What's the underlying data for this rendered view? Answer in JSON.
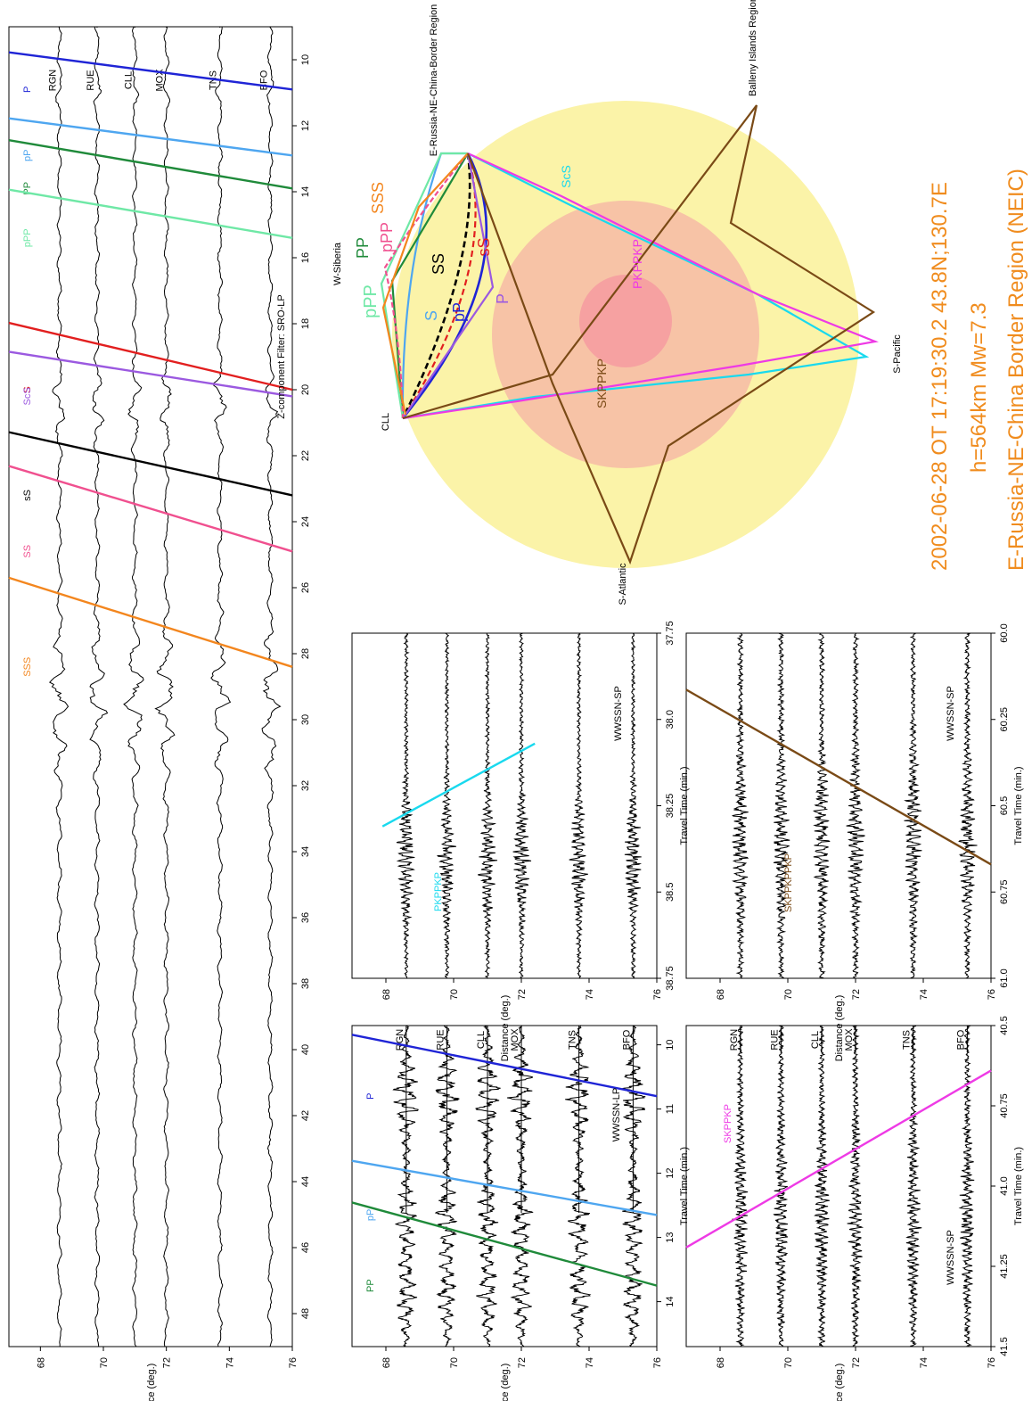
{
  "colors": {
    "P": "#1f24d6",
    "pP": "#4ea6f0",
    "PP": "#1f8a3a",
    "pPP": "#6fe8a6",
    "S": "#e21f1f",
    "ScS": "#9b59e0",
    "sS": "#000000",
    "SS": "#f0508f",
    "SSS": "#f3861e",
    "PKPPKP": "#19d9ee",
    "SKPPKP": "#ee3ae5",
    "SKPPKPPKP": "#7a4a16",
    "core_outer": "#f7c3a6",
    "core_inner": "#f6a1a1",
    "mantle": "#fbf3a8",
    "title": "#f08c1e"
  },
  "stations": [
    "BFO",
    "TNS",
    "MOX",
    "CLL",
    "RUE",
    "RGN"
  ],
  "station_distances": [
    75.3,
    73.7,
    72.0,
    71.0,
    69.8,
    68.6
  ],
  "chart_data": [
    {
      "type": "line",
      "name": "main",
      "filter_label": "Z-component  Filter: SRO-LP",
      "xlabel": "Distance (deg.)",
      "xlim": [
        67,
        76
      ],
      "xticks": [
        68,
        70,
        72,
        74,
        76
      ],
      "ylim": [
        9,
        49
      ],
      "yticks": [
        10,
        12,
        14,
        16,
        18,
        20,
        22,
        24,
        26,
        28,
        30,
        32,
        34,
        36,
        38,
        40,
        42,
        44,
        46,
        48
      ],
      "phases": [
        {
          "name": "P",
          "t68": 9.9,
          "t76": 10.9
        },
        {
          "name": "pP",
          "t68": 11.9,
          "t76": 12.9
        },
        {
          "name": "PP",
          "t68": 12.6,
          "t76": 13.9
        },
        {
          "name": "pPP",
          "t68": 14.1,
          "t76": 15.4
        },
        {
          "name": "S",
          "t68": 18.2,
          "t76": 20.0
        },
        {
          "name": "ScS",
          "t68": 19.0,
          "t76": 20.2
        },
        {
          "name": "sS",
          "t68": 21.5,
          "t76": 23.2
        },
        {
          "name": "SS",
          "t68": 22.6,
          "t76": 24.9
        },
        {
          "name": "SSS",
          "t68": 26.0,
          "t76": 28.4
        }
      ]
    },
    {
      "type": "line",
      "name": "wwssn-lp",
      "filter_label": "WWSSN-LP",
      "xlabel": "Distance (deg.)",
      "ylabel": "Travel Time (min.)",
      "xlim": [
        67,
        76
      ],
      "xticks": [
        68,
        70,
        72,
        74,
        76
      ],
      "ylim": [
        9.7,
        14.7
      ],
      "yticks": [
        10,
        11,
        12,
        13,
        14
      ],
      "phases": [
        {
          "name": "P",
          "t68": 9.95,
          "t76": 10.8
        },
        {
          "name": "pP",
          "t68": 11.9,
          "t76": 12.65
        },
        {
          "name": "PP",
          "t68": 12.6,
          "t76": 13.75
        }
      ]
    },
    {
      "type": "line",
      "name": "pkppkp",
      "filter_label": "WWSSN-SP",
      "phase_label": "PKPPKP",
      "xlabel": "Distance (deg.)",
      "ylabel": "Travel Time (min.)",
      "xlim": [
        67,
        76
      ],
      "xticks": [
        68,
        70,
        72,
        74,
        76
      ],
      "ylim": [
        37.75,
        38.75
      ],
      "yticks": [
        "37.75",
        "38.0",
        "38.25",
        "38.5",
        "38.75"
      ],
      "phases": [
        {
          "name": "PKPPKP",
          "t68": 38.31,
          "t76": 38.07,
          "d0": 67.9,
          "d1": 72.4
        }
      ]
    },
    {
      "type": "line",
      "name": "skppkp",
      "filter_label": "WWSSN-SP",
      "phase_label": "SKPPKP",
      "xlabel": "Distance (deg.)",
      "ylabel": "Travel Time (min.)",
      "xlim": [
        67,
        76
      ],
      "xticks": [
        68,
        70,
        72,
        74,
        76
      ],
      "ylim": [
        40.5,
        41.5
      ],
      "yticks": [
        "40.5",
        "40.75",
        "41.0",
        "41.25",
        "41.5"
      ],
      "phases": [
        {
          "name": "SKPPKP",
          "t68": 41.13,
          "t76": 40.64
        }
      ]
    },
    {
      "type": "line",
      "name": "skppkppkp",
      "filter_label": "WWSSN-SP",
      "phase_label": "SKPPKPPKP",
      "xlabel": "Distance (deg.)",
      "ylabel": "Travel Time (min.)",
      "xlim": [
        67,
        76
      ],
      "xticks": [
        68,
        70,
        72,
        74,
        76
      ],
      "ylim": [
        60.0,
        61.0
      ],
      "yticks": [
        "60.0",
        "60.25",
        "60.5",
        "60.75",
        "61.0"
      ],
      "phases": [
        {
          "name": "SKPPKPPKP",
          "t68": 60.22,
          "t76": 60.67
        }
      ]
    }
  ],
  "raypath": {
    "labels": {
      "source": "E-Russia-NE-China-Border Region",
      "cll": "CLL",
      "wsiberia": "W-Siberia",
      "satlantic": "S-Atlantic",
      "spacific": "S-Pacific",
      "balleny": "Balleny Islands Region"
    },
    "phase_labels": [
      "SSS",
      "PP",
      "pPP",
      "SS",
      "sS",
      "S",
      "pP",
      "P",
      "ScS",
      "PKPPKP",
      "SKPPKP",
      "SKPPKPPKP"
    ]
  },
  "title": {
    "line1": "2002-06-28  OT 17:19:30.2  43.8N;130.7E",
    "line2": "h=564km Mw=7.3",
    "line3": "E-Russia-NE-China Border Region (NEIC)"
  }
}
